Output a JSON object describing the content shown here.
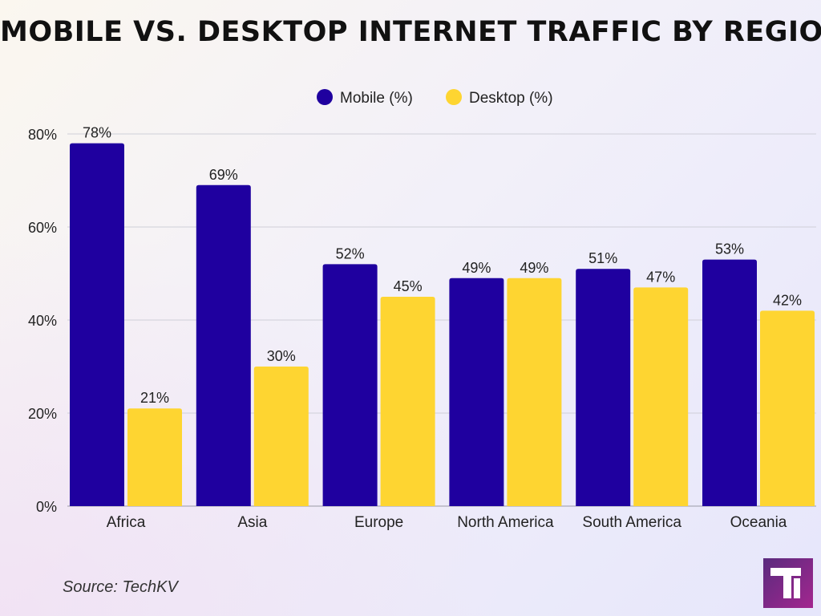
{
  "chart_data": {
    "type": "bar",
    "title": "MOBILE VS. DESKTOP INTERNET TRAFFIC BY REGION",
    "categories": [
      "Africa",
      "Asia",
      "Europe",
      "North America",
      "South America",
      "Oceania"
    ],
    "series": [
      {
        "name": "Mobile (%)",
        "values": [
          78,
          69,
          52,
          49,
          51,
          53
        ],
        "color": "#1f009f"
      },
      {
        "name": "Desktop (%)",
        "values": [
          21,
          30,
          45,
          49,
          47,
          42
        ],
        "color": "#fed531"
      }
    ],
    "data_labels": [
      [
        "78%",
        "69%",
        "52%",
        "49%",
        "51%",
        "53%"
      ],
      [
        "21%",
        "30%",
        "45%",
        "49%",
        "47%",
        "42%"
      ]
    ],
    "ylim": [
      0,
      80
    ],
    "yticks": [
      0,
      20,
      40,
      60,
      80
    ],
    "ytick_labels": [
      "0%",
      "20%",
      "40%",
      "60%",
      "80%"
    ],
    "xlabel": "",
    "ylabel": "",
    "grid": true,
    "legend_position": "top-center"
  },
  "source": "Source: TechKV",
  "colors": {
    "mobile": "#1f009f",
    "desktop": "#fed531",
    "logo_start": "#5a2b7e",
    "logo_end": "#a3268f"
  }
}
